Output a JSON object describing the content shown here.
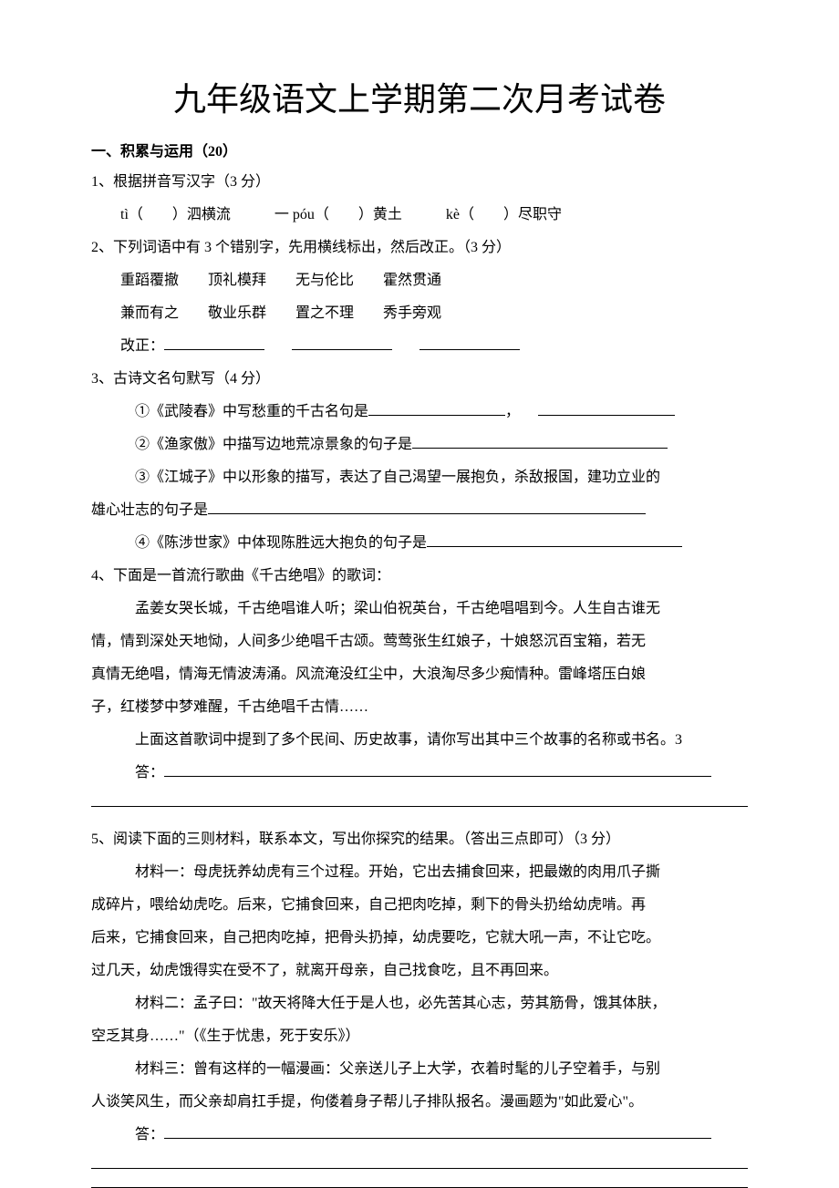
{
  "title": "九年级语文上学期第二次月考试卷",
  "section1": {
    "header": "一、积累与运用（20）",
    "q1": {
      "prompt": "1、根据拼音写汉字（3 分）",
      "items": "tì（　　）泗横流　　　一 póu（　　）黄土　　　kè（　　）尽职守"
    },
    "q2": {
      "prompt": "2、下列词语中有 3 个错别字，先用横线标出，然后改正。（3 分）",
      "line1": "重蹈覆撤　　顶礼模拜　　无与伦比　　霍然贯通",
      "line2": "兼而有之　　敬业乐群　　置之不理　　秀手旁观",
      "correction_label": "改正："
    },
    "q3": {
      "prompt": "3、古诗文名句默写（4 分）",
      "item1_a": "①《武陵春》中写愁重的千古名句是",
      "item1_b": "，",
      "item2": "②《渔家傲》中描写边地荒凉景象的句子是",
      "item3_a": "③《江城子》中以形象的描写，表达了自己渴望一展抱负，杀敌报国，建功立业的",
      "item3_b": "雄心壮志的句子是",
      "item4": "④《陈涉世家》中体现陈胜远大抱负的句子是"
    },
    "q4": {
      "prompt": "4、下面是一首流行歌曲《千古绝唱》的歌词：",
      "lyrics1": "孟姜女哭长城，千古绝唱谁人听；梁山伯祝英台，千古绝唱唱到今。人生自古谁无",
      "lyrics2": "情，情到深处天地恸，人间多少绝唱千古颂。莺莺张生红娘子，十娘怒沉百宝箱，若无",
      "lyrics3": "真情无绝唱，情海无情波涛涌。风流淹没红尘中，大浪淘尽多少痴情种。雷峰塔压白娘",
      "lyrics4": "子，红楼梦中梦难醒，千古绝唱千古情……",
      "task": "上面这首歌词中提到了多个民间、历史故事，请你写出其中三个故事的名称或书名。3",
      "answer_label": "答："
    },
    "q5": {
      "prompt": "5、阅读下面的三则材料，联系本文，写出你探究的结果。（答出三点即可）（3 分）",
      "m1_a": "材料一：母虎抚养幼虎有三个过程。开始，它出去捕食回来，把最嫩的肉用爪子撕",
      "m1_b": "成碎片，喂给幼虎吃。后来，它捕食回来，自己把肉吃掉，剩下的骨头扔给幼虎啃。再",
      "m1_c": "后来，它捕食回来，自己把肉吃掉，把骨头扔掉，幼虎要吃，它就大吼一声，不让它吃。",
      "m1_d": "过几天，幼虎饿得实在受不了，就离开母亲，自己找食吃，且不再回来。",
      "m2_a": "材料二：孟子曰：\"故天将降大任于是人也，必先苦其心志，劳其筋骨，饿其体肤，",
      "m2_b": "空乏其身……\"（《生于忧患，死于安乐》）",
      "m3_a": "材料三：曾有这样的一幅漫画：父亲送儿子上大学，衣着时髦的儿子空着手，与别",
      "m3_b": "人谈笑风生，而父亲却肩扛手提，佝偻着身子帮儿子排队报名。漫画题为\"如此爱心\"。",
      "answer_label": "答："
    }
  },
  "colors": {
    "text": "#000000",
    "background": "#ffffff"
  },
  "typography": {
    "title_fontsize": 36,
    "body_fontsize": 16,
    "font_family": "SimSun"
  }
}
